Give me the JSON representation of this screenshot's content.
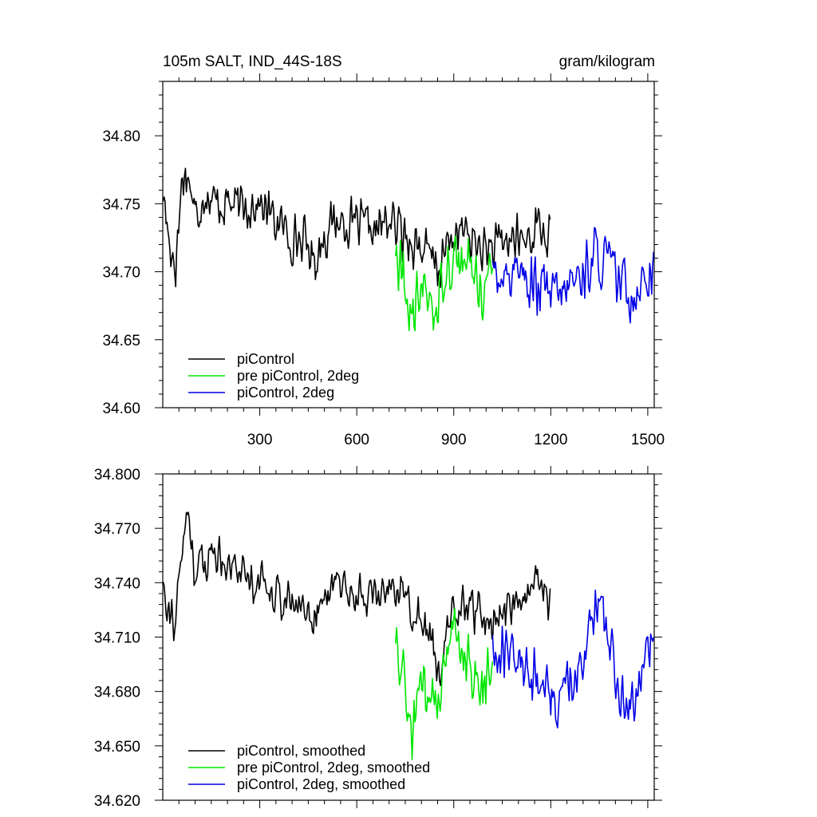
{
  "chart_data": [
    {
      "type": "line",
      "title_left": "105m SALT, IND_44S-18S",
      "title_right": "gram/kilogram",
      "xlim": [
        0,
        1520
      ],
      "ylim": [
        34.6,
        34.84
      ],
      "xticks": [
        300,
        600,
        900,
        1200,
        1500
      ],
      "xtick_labels": [
        "300",
        "600",
        "900",
        "1200",
        "1500"
      ],
      "yticks": [
        34.6,
        34.65,
        34.7,
        34.75,
        34.8
      ],
      "ytick_labels": [
        "34.60",
        "34.65",
        "34.70",
        "34.75",
        "34.80"
      ],
      "grid": false,
      "legend_position": "bottom-left",
      "series": [
        {
          "name": "piControl",
          "color": "#000000",
          "x_range": [
            1,
            1200
          ],
          "points": [
            [
              1,
              34.758
            ],
            [
              20,
              34.722
            ],
            [
              40,
              34.705
            ],
            [
              60,
              34.77
            ],
            [
              80,
              34.772
            ],
            [
              100,
              34.74
            ],
            [
              130,
              34.76
            ],
            [
              160,
              34.75
            ],
            [
              200,
              34.752
            ],
            [
              240,
              34.745
            ],
            [
              280,
              34.752
            ],
            [
              320,
              34.745
            ],
            [
              360,
              34.735
            ],
            [
              400,
              34.725
            ],
            [
              440,
              34.722
            ],
            [
              470,
              34.708
            ],
            [
              500,
              34.728
            ],
            [
              540,
              34.738
            ],
            [
              580,
              34.735
            ],
            [
              620,
              34.732
            ],
            [
              660,
              34.73
            ],
            [
              700,
              34.738
            ],
            [
              740,
              34.728
            ],
            [
              780,
              34.722
            ],
            [
              820,
              34.712
            ],
            [
              860,
              34.702
            ],
            [
              880,
              34.72
            ],
            [
              920,
              34.73
            ],
            [
              960,
              34.722
            ],
            [
              1000,
              34.715
            ],
            [
              1040,
              34.718
            ],
            [
              1080,
              34.725
            ],
            [
              1120,
              34.722
            ],
            [
              1160,
              34.735
            ],
            [
              1200,
              34.722
            ]
          ],
          "noise_amplitude": 0.022
        },
        {
          "name": "pre piControl, 2deg",
          "color": "#00e600",
          "x_range": [
            720,
            1020
          ],
          "points": [
            [
              720,
              34.71
            ],
            [
              750,
              34.69
            ],
            [
              770,
              34.66
            ],
            [
              800,
              34.688
            ],
            [
              830,
              34.68
            ],
            [
              850,
              34.665
            ],
            [
              870,
              34.705
            ],
            [
              900,
              34.712
            ],
            [
              930,
              34.705
            ],
            [
              960,
              34.7
            ],
            [
              990,
              34.688
            ],
            [
              1020,
              34.695
            ]
          ],
          "noise_amplitude": 0.026
        },
        {
          "name": "piControl, 2deg",
          "color": "#0000e6",
          "x_range": [
            1020,
            1520
          ],
          "points": [
            [
              1020,
              34.705
            ],
            [
              1060,
              34.7
            ],
            [
              1100,
              34.705
            ],
            [
              1140,
              34.69
            ],
            [
              1180,
              34.685
            ],
            [
              1220,
              34.68
            ],
            [
              1260,
              34.69
            ],
            [
              1300,
              34.7
            ],
            [
              1340,
              34.712
            ],
            [
              1380,
              34.705
            ],
            [
              1420,
              34.69
            ],
            [
              1460,
              34.685
            ],
            [
              1490,
              34.698
            ],
            [
              1520,
              34.705
            ]
          ],
          "noise_amplitude": 0.026
        }
      ]
    },
    {
      "type": "line",
      "xlim": [
        0,
        1520
      ],
      "ylim": [
        34.62,
        34.8
      ],
      "xticks": [
        300,
        600,
        900,
        1200,
        1500
      ],
      "yticks": [
        34.62,
        34.65,
        34.68,
        34.71,
        34.74,
        34.77,
        34.8
      ],
      "ytick_labels": [
        "34.620",
        "34.650",
        "34.680",
        "34.710",
        "34.740",
        "34.770",
        "34.800"
      ],
      "grid": false,
      "legend_position": "bottom-left",
      "series": [
        {
          "name": "piControl, smoothed",
          "color": "#000000",
          "x_range": [
            1,
            1200
          ],
          "points": [
            [
              1,
              34.744
            ],
            [
              20,
              34.725
            ],
            [
              40,
              34.718
            ],
            [
              60,
              34.758
            ],
            [
              80,
              34.78
            ],
            [
              100,
              34.745
            ],
            [
              130,
              34.752
            ],
            [
              160,
              34.758
            ],
            [
              200,
              34.752
            ],
            [
              240,
              34.748
            ],
            [
              280,
              34.742
            ],
            [
              320,
              34.74
            ],
            [
              360,
              34.733
            ],
            [
              400,
              34.728
            ],
            [
              440,
              34.727
            ],
            [
              470,
              34.722
            ],
            [
              500,
              34.732
            ],
            [
              540,
              34.74
            ],
            [
              580,
              34.735
            ],
            [
              620,
              34.733
            ],
            [
              660,
              34.732
            ],
            [
              700,
              34.74
            ],
            [
              740,
              34.735
            ],
            [
              780,
              34.724
            ],
            [
              820,
              34.712
            ],
            [
              860,
              34.69
            ],
            [
              880,
              34.718
            ],
            [
              920,
              34.728
            ],
            [
              960,
              34.724
            ],
            [
              1000,
              34.718
            ],
            [
              1040,
              34.723
            ],
            [
              1080,
              34.728
            ],
            [
              1120,
              34.728
            ],
            [
              1160,
              34.742
            ],
            [
              1200,
              34.726
            ]
          ],
          "noise_amplitude": 0.014
        },
        {
          "name": "pre piControl, 2deg, smoothed",
          "color": "#00e600",
          "x_range": [
            720,
            1020
          ],
          "points": [
            [
              720,
              34.7
            ],
            [
              750,
              34.685
            ],
            [
              770,
              34.65
            ],
            [
              800,
              34.68
            ],
            [
              830,
              34.678
            ],
            [
              850,
              34.66
            ],
            [
              870,
              34.708
            ],
            [
              900,
              34.712
            ],
            [
              930,
              34.698
            ],
            [
              960,
              34.69
            ],
            [
              990,
              34.683
            ],
            [
              1020,
              34.69
            ]
          ],
          "noise_amplitude": 0.022
        },
        {
          "name": "piControl, 2deg, smoothed",
          "color": "#0000e6",
          "x_range": [
            1020,
            1520
          ],
          "points": [
            [
              1020,
              34.7
            ],
            [
              1060,
              34.705
            ],
            [
              1100,
              34.705
            ],
            [
              1140,
              34.688
            ],
            [
              1180,
              34.68
            ],
            [
              1220,
              34.675
            ],
            [
              1260,
              34.688
            ],
            [
              1300,
              34.7
            ],
            [
              1340,
              34.725
            ],
            [
              1380,
              34.705
            ],
            [
              1420,
              34.68
            ],
            [
              1460,
              34.675
            ],
            [
              1490,
              34.705
            ],
            [
              1520,
              34.708
            ]
          ],
          "noise_amplitude": 0.02
        }
      ]
    }
  ]
}
